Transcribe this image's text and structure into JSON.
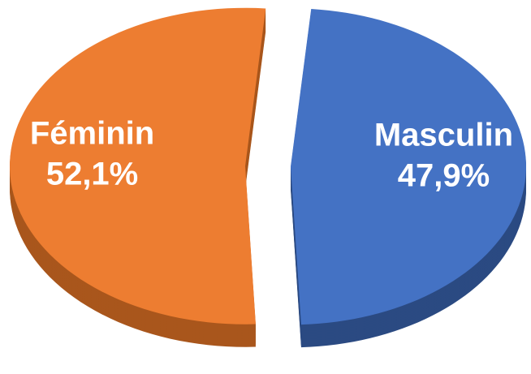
{
  "chart_data": {
    "type": "pie",
    "categories": [
      "Féminin",
      "Masculin"
    ],
    "values": [
      52.1,
      47.9
    ],
    "value_labels": [
      "52,1%",
      "47,9%"
    ],
    "colors": [
      "#ed7d31",
      "#4472c4"
    ],
    "side_colors": [
      "#a9561c",
      "#2b4a82"
    ]
  }
}
